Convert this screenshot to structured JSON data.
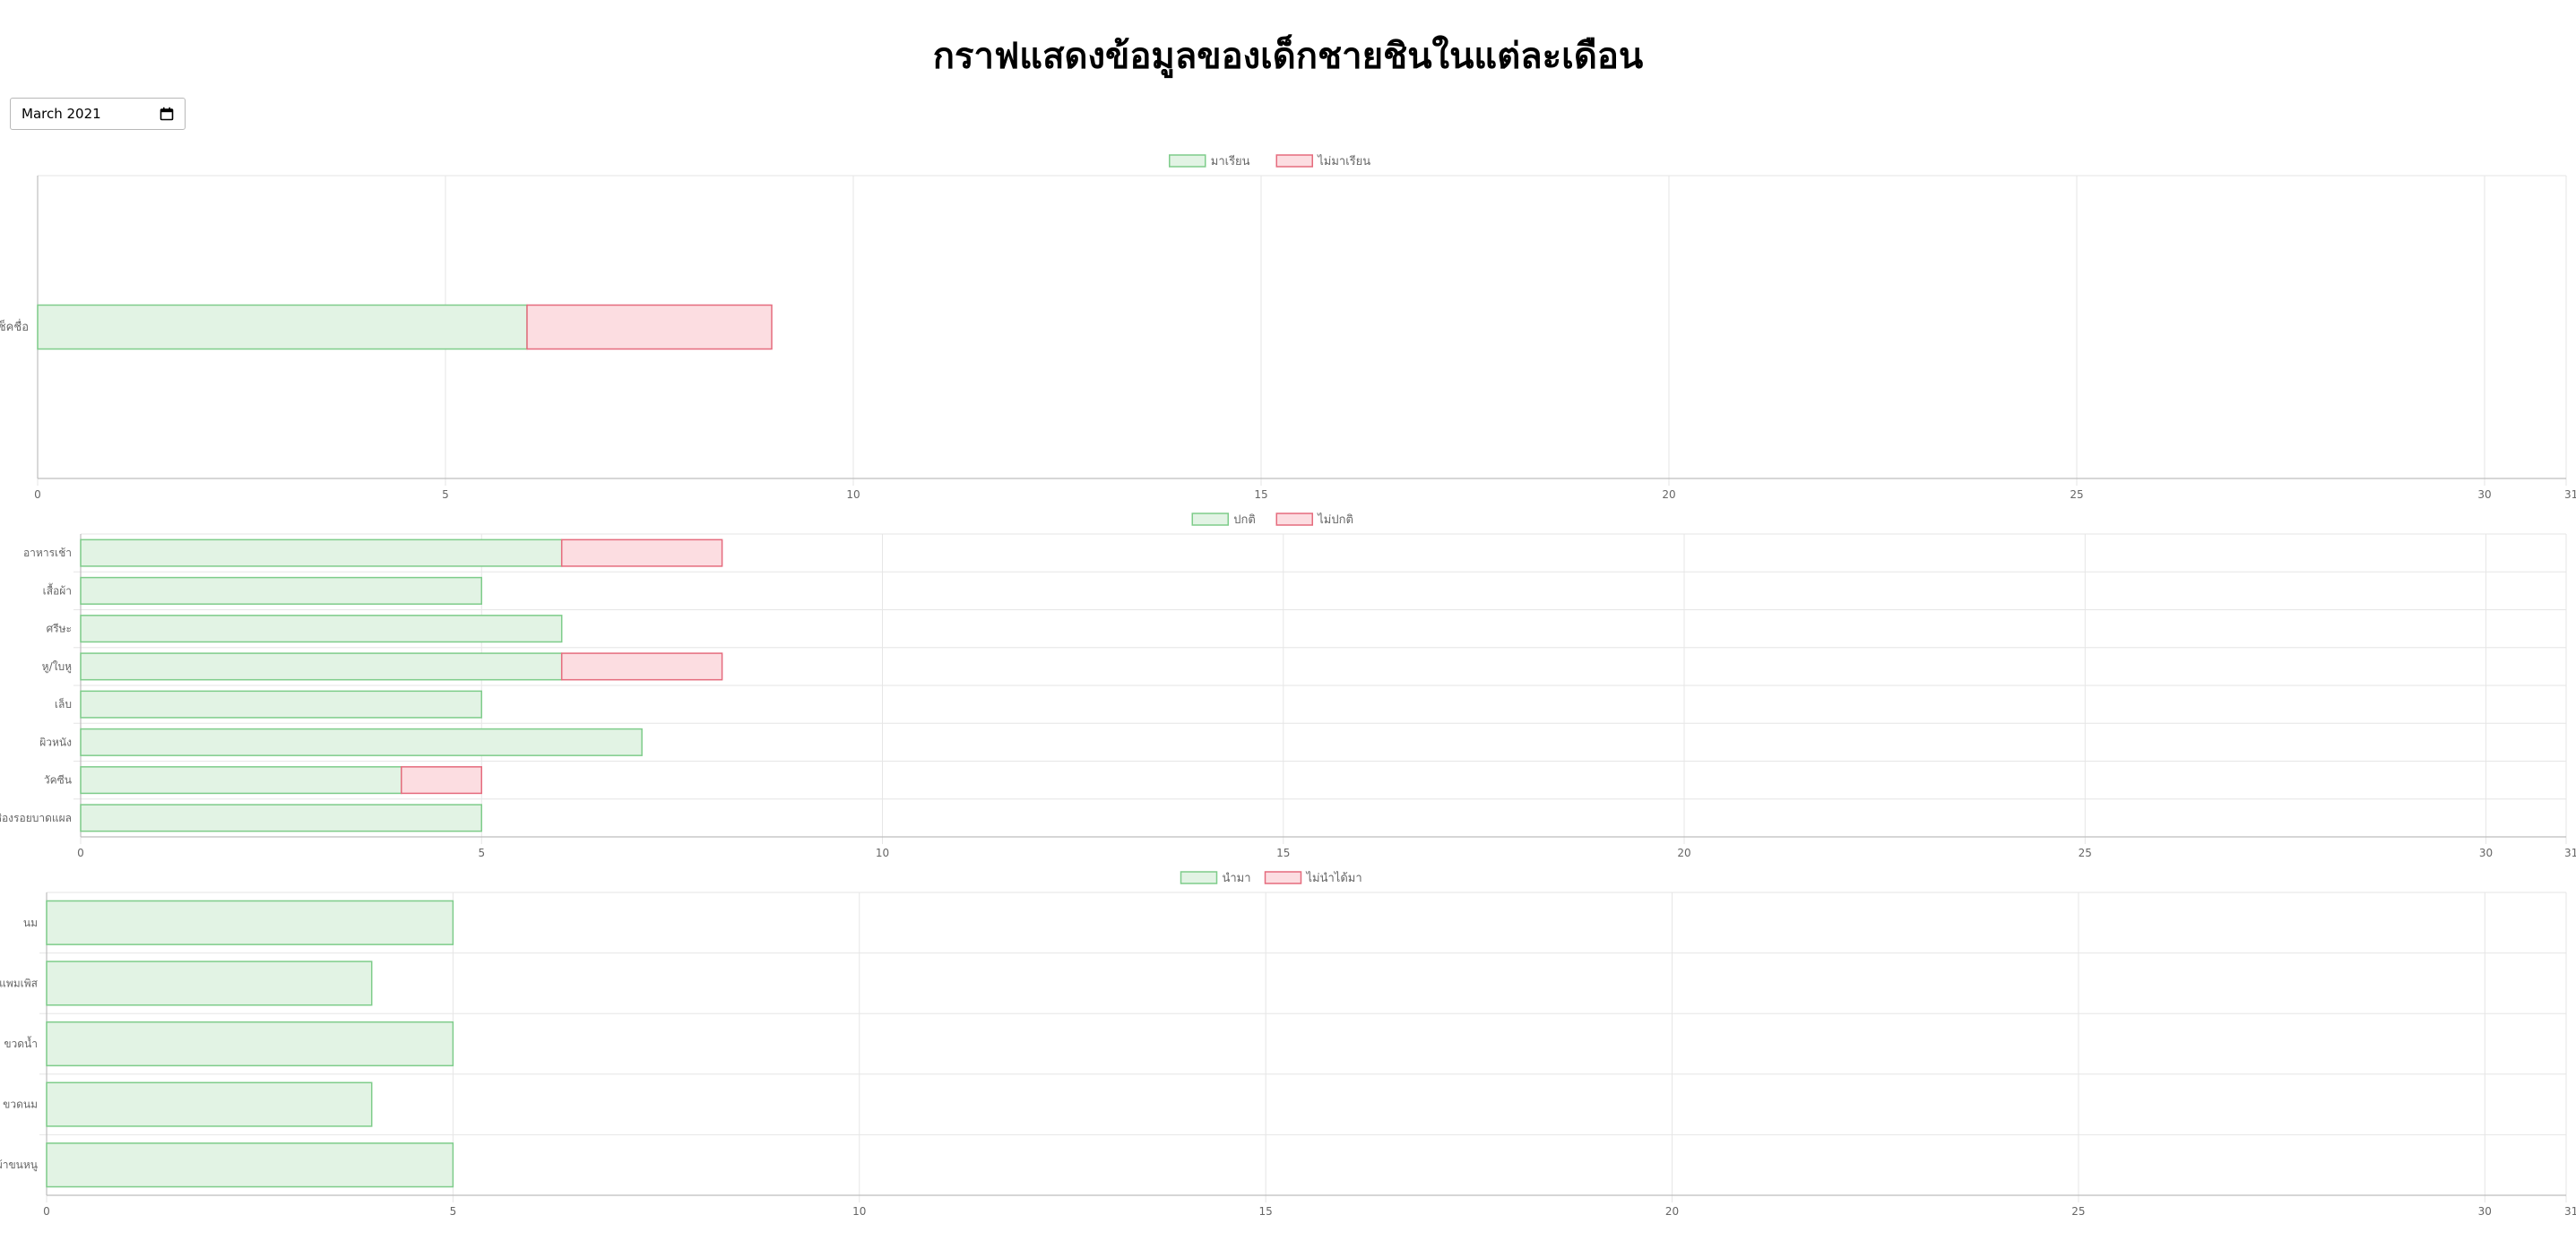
{
  "page": {
    "title": "กราฟแสดงข้อมูลของเด็กชายชินในแต่ละเดือน",
    "month_value": "March 2021",
    "calendar_icon": "calendar-icon"
  },
  "colors": {
    "green_fill": "#e2f3e4",
    "green_border": "#7ecc8a",
    "red_fill": "#fcdde1",
    "red_border": "#e56b7d",
    "grid": "#e6e6e6",
    "axis": "#bdbdbd",
    "tick_text": "#666666"
  },
  "chart_data": [
    {
      "type": "bar",
      "orientation": "horizontal",
      "stacked": true,
      "categories": [
        "เช็คชื่อ"
      ],
      "series": [
        {
          "name": "มาเรียน",
          "values": [
            6
          ]
        },
        {
          "name": "ไม่มาเรียน",
          "values": [
            3
          ]
        }
      ],
      "xlim": [
        0,
        31
      ],
      "xticks": [
        0,
        5,
        10,
        15,
        20,
        25,
        30,
        31
      ],
      "legend": "top-center",
      "grid": true
    },
    {
      "type": "bar",
      "orientation": "horizontal",
      "stacked": true,
      "categories": [
        "อาหารเช้า",
        "เสื้อผ้า",
        "ศรีษะ",
        "หู/ใบหู",
        "เล็บ",
        "ผิวหนัง",
        "วัคซีน",
        "ช่องรอยบาดแผล"
      ],
      "series": [
        {
          "name": "ปกติ",
          "values": [
            6,
            5,
            6,
            6,
            5,
            7,
            4,
            5
          ]
        },
        {
          "name": "ไม่ปกติ",
          "values": [
            2,
            0,
            0,
            2,
            0,
            0,
            1,
            0
          ]
        }
      ],
      "xlim": [
        0,
        31
      ],
      "xticks": [
        0,
        5,
        10,
        15,
        20,
        25,
        30,
        31
      ],
      "legend": "top-center",
      "grid": true
    },
    {
      "type": "bar",
      "orientation": "horizontal",
      "stacked": true,
      "categories": [
        "นม",
        "แพมเพิส",
        "ขวดน้ำ",
        "ขวดนม",
        "ผ้าขนหนู"
      ],
      "series": [
        {
          "name": "นำมา",
          "values": [
            5,
            4,
            5,
            4,
            5
          ]
        },
        {
          "name": "ไม่นำได้มา",
          "values": [
            0,
            0,
            0,
            0,
            0
          ]
        }
      ],
      "xlim": [
        0,
        31
      ],
      "xticks": [
        0,
        5,
        10,
        15,
        20,
        25,
        30,
        31
      ],
      "legend": "top-center",
      "grid": true
    }
  ]
}
